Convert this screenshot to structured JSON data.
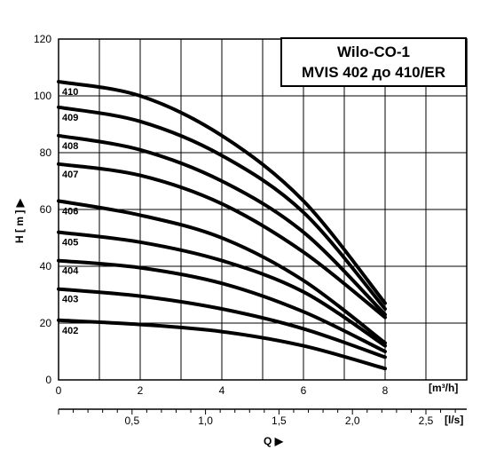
{
  "chart_data": {
    "type": "line",
    "title_lines": [
      "Wilo-CO-1",
      "MVIS 402 до 410/ER"
    ],
    "ylabel": "H [ m ] ▶",
    "xlabel": "Q ▶",
    "x_unit_top": "[m³/h]",
    "x_unit_bottom": "[l/s]",
    "xlim": [
      0,
      10
    ],
    "ylim": [
      0,
      120
    ],
    "x_ticks": [
      "0",
      "2",
      "4",
      "6",
      "8"
    ],
    "y_ticks": [
      "0",
      "20",
      "40",
      "60",
      "80",
      "100",
      "120"
    ],
    "x2_ticks": [
      "0,5",
      "1,0",
      "1,5",
      "2,0",
      "2,5"
    ],
    "grid": true,
    "series": [
      {
        "name": "402",
        "x": [
          0,
          2,
          4,
          6,
          8
        ],
        "y": [
          21,
          19.5,
          17,
          12,
          4
        ]
      },
      {
        "name": "403",
        "x": [
          0,
          2,
          4,
          6,
          8
        ],
        "y": [
          32,
          29.5,
          25,
          18,
          8
        ]
      },
      {
        "name": "404",
        "x": [
          0,
          2,
          4,
          6,
          8
        ],
        "y": [
          42,
          39.5,
          34,
          24,
          10
        ]
      },
      {
        "name": "405",
        "x": [
          0,
          2,
          4,
          6,
          8
        ],
        "y": [
          52,
          48.5,
          42,
          31,
          12
        ]
      },
      {
        "name": "406",
        "x": [
          0,
          2,
          4,
          6,
          8
        ],
        "y": [
          63,
          58,
          50,
          35,
          13
        ]
      },
      {
        "name": "407",
        "x": [
          0,
          2,
          4,
          6,
          8
        ],
        "y": [
          76,
          72,
          62,
          45,
          22
        ]
      },
      {
        "name": "408",
        "x": [
          0,
          2,
          4,
          6,
          8
        ],
        "y": [
          86,
          81,
          70,
          52,
          23
        ]
      },
      {
        "name": "409",
        "x": [
          0,
          2,
          4,
          6,
          8
        ],
        "y": [
          96,
          91,
          79,
          59,
          25
        ]
      },
      {
        "name": "410",
        "x": [
          0,
          2,
          4,
          6,
          8
        ],
        "y": [
          105,
          100,
          86,
          63,
          27
        ]
      }
    ]
  }
}
